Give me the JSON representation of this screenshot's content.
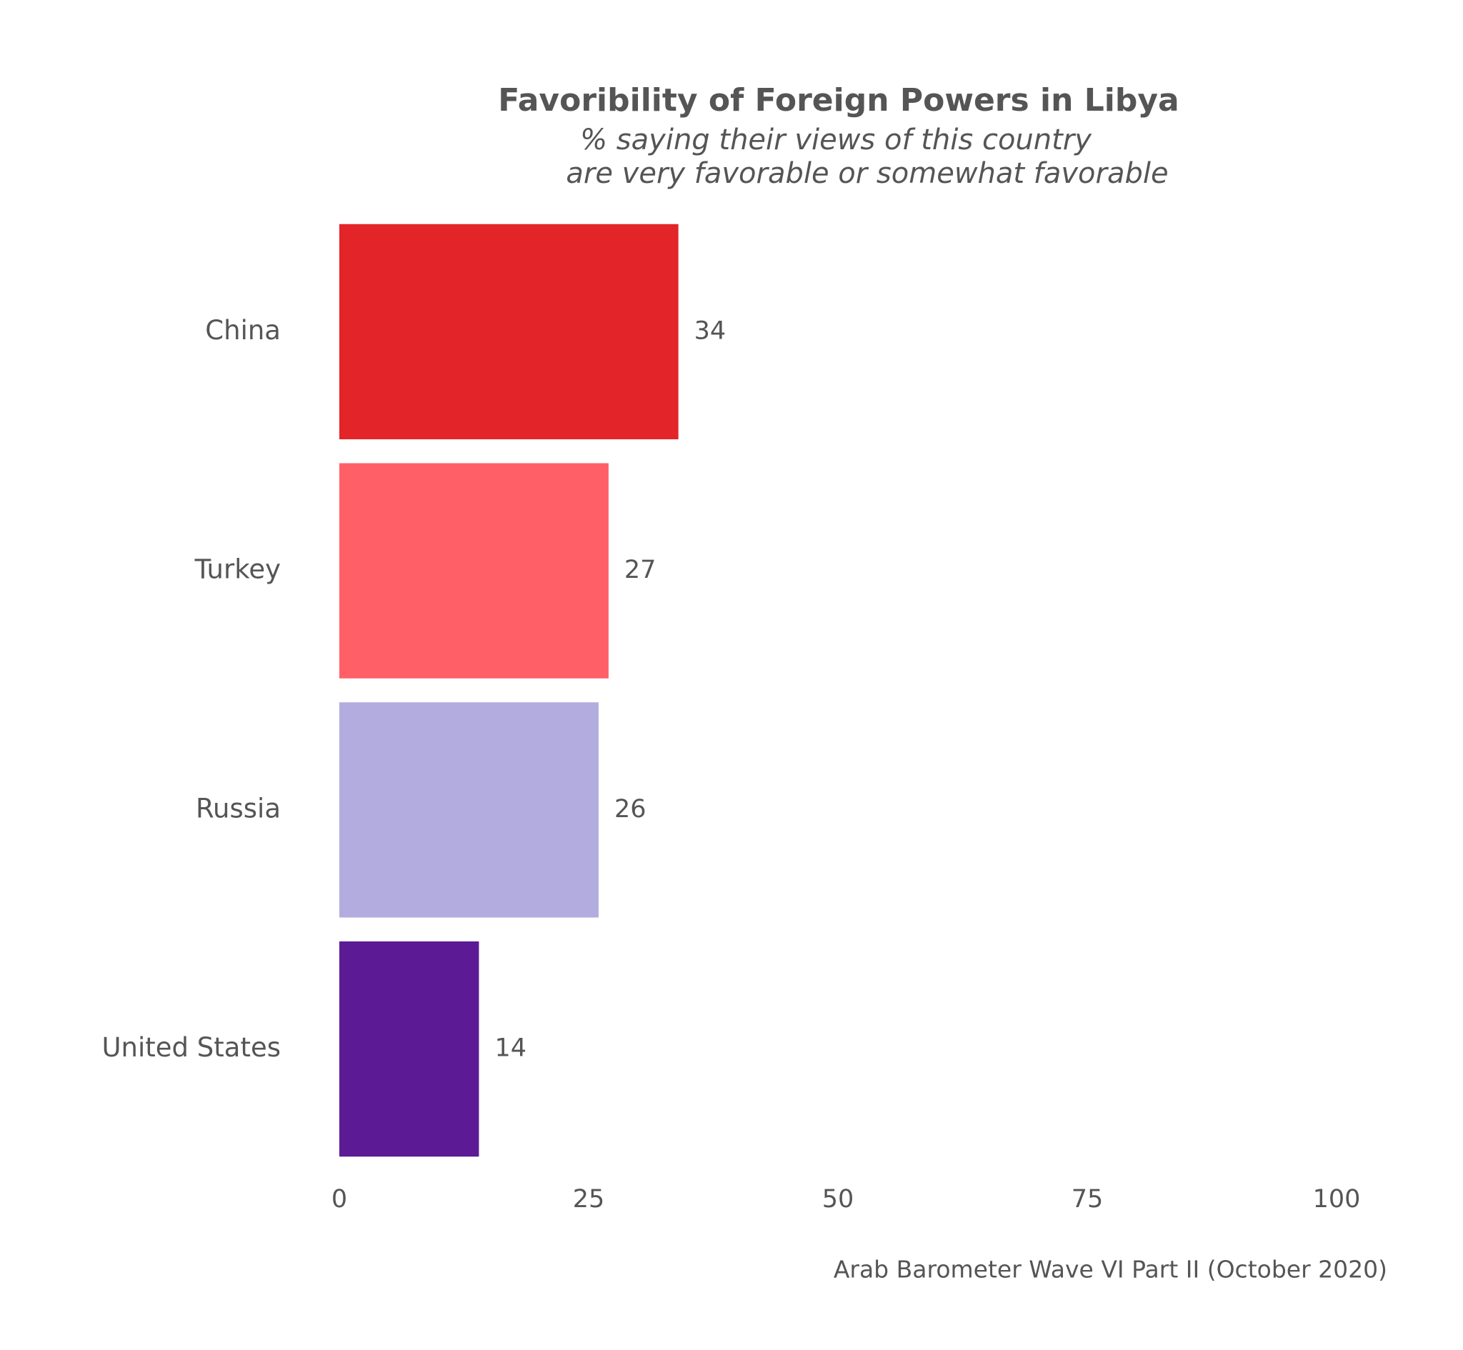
{
  "chart_data": {
    "type": "barh",
    "title": "Favoribility of Foreign Powers in Libya",
    "subtitle": [
      "% saying their views of this country",
      "are very favorable or somewhat favorable"
    ],
    "caption": "Arab Barometer Wave VI Part II (October 2020)",
    "categories": [
      "China",
      "Turkey",
      "Russia",
      "United States"
    ],
    "values": [
      34,
      27,
      26,
      14
    ],
    "colors": [
      "#e32428",
      "#ff6068",
      "#b3acdf",
      "#5c1a95"
    ],
    "xlim": [
      0,
      100
    ],
    "xticks": [
      0,
      25,
      50,
      75,
      100
    ],
    "grid": false
  }
}
